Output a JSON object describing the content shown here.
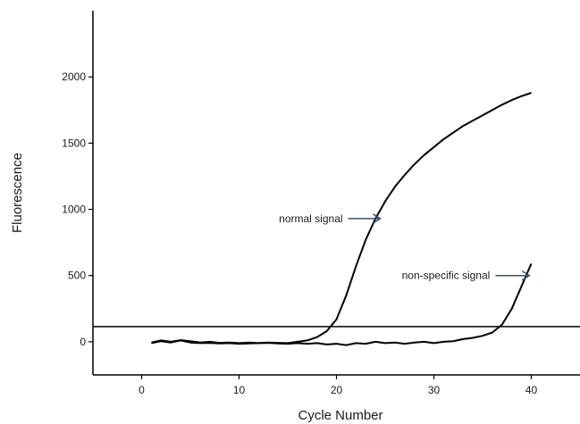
{
  "chart_data": {
    "type": "line",
    "title": "",
    "xlabel": "Cycle Number",
    "ylabel": "Fluorescence",
    "xlim": [
      -5,
      45
    ],
    "ylim": [
      -250,
      2500
    ],
    "x_ticks": [
      0,
      10,
      20,
      30,
      40
    ],
    "y_ticks": [
      0,
      500,
      1000,
      1500,
      2000
    ],
    "grid": false,
    "threshold": 115,
    "series": [
      {
        "x": [
          1,
          2,
          3,
          4,
          5,
          6,
          7,
          8,
          9,
          10,
          11,
          12,
          13,
          14,
          15,
          16,
          17,
          18,
          19,
          20,
          21,
          22,
          23,
          24,
          25,
          26,
          27,
          28,
          29,
          30,
          31,
          32,
          33,
          34,
          35,
          36,
          37,
          38,
          39,
          40
        ],
        "y": [
          -10,
          5,
          -5,
          10,
          -5,
          -10,
          -8,
          -12,
          -10,
          -15,
          -12,
          -10,
          -5,
          -8,
          -10,
          0,
          10,
          35,
          80,
          170,
          350,
          570,
          770,
          930,
          1060,
          1170,
          1260,
          1340,
          1410,
          1470,
          1530,
          1580,
          1630,
          1670,
          1710,
          1750,
          1790,
          1825,
          1855,
          1880
        ],
        "color": "#000000"
      },
      {
        "x": [
          1,
          2,
          3,
          4,
          5,
          6,
          7,
          8,
          9,
          10,
          11,
          12,
          13,
          14,
          15,
          16,
          17,
          18,
          19,
          20,
          21,
          22,
          23,
          24,
          25,
          26,
          27,
          28,
          29,
          30,
          31,
          32,
          33,
          34,
          35,
          36,
          37,
          38,
          39,
          40
        ],
        "y": [
          -5,
          10,
          0,
          12,
          5,
          -5,
          0,
          -8,
          -5,
          -10,
          -5,
          -10,
          -8,
          -12,
          -15,
          -10,
          -15,
          -10,
          -20,
          -15,
          -25,
          -10,
          -15,
          0,
          -10,
          -5,
          -15,
          -5,
          0,
          -10,
          0,
          5,
          20,
          30,
          45,
          70,
          130,
          250,
          420,
          590
        ],
        "color": "#000000"
      }
    ],
    "annotations": [
      {
        "text": "normal signal",
        "arrow_to": [
          24.5,
          930
        ]
      },
      {
        "text": "non-specific signal",
        "arrow_to": [
          39.8,
          500
        ]
      }
    ],
    "arrow_color": "#3f4f66"
  }
}
